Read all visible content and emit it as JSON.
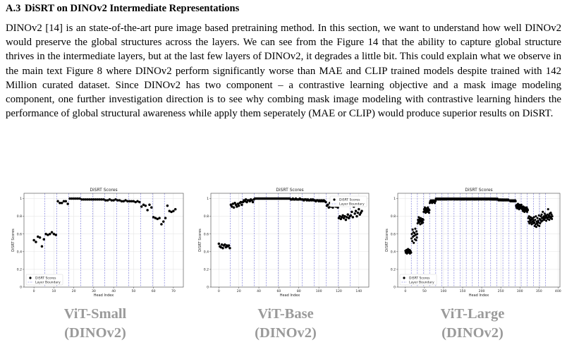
{
  "section": {
    "number": "A.3",
    "title": "DiSRT on DINOv2 Intermediate Representations"
  },
  "paragraph": "DINOv2 [14] is an state-of-the-art pure image based pretraining method. In this section, we want to understand how well DINOv2 would preserve the global structures across the layers. We can see from the Figure 14 that the ability to capture global structure thrives in the intermediate layers, but at the last few layers of DINOv2, it degrades a little bit. This could explain what we observe in the main text Figure 8 where DINOv2 perform significantly worse than MAE and CLIP trained models despite trained with 142 Million curated dataset. Since DINOv2 has two component – a contrastive learning objective and a mask image modeling component, one further investigation direction is to see why combing mask image modeling with contrastive learning hinders the performance of global structural awareness while apply them seperately (MAE or CLIP) would produce superior results on DiSRT.",
  "chart_data": [
    {
      "type": "scatter",
      "title": "DiSRT Scores",
      "xlabel": "Head Index",
      "ylabel": "DiSRT Scores",
      "xlim": [
        -5,
        75
      ],
      "ylim": [
        0.0,
        1.06
      ],
      "xticks": [
        0,
        10,
        20,
        30,
        40,
        50,
        60,
        70
      ],
      "yticks": [
        0.0,
        0.2,
        0.4,
        0.6,
        0.8,
        1.0
      ],
      "legend_position": "lower-left",
      "legend": [
        "DiSRT Scores",
        "Layer Boundary"
      ],
      "grid": true,
      "layer_boundaries": [
        5.5,
        11.5,
        17.5,
        23.5,
        29.5,
        35.5,
        41.5,
        47.5,
        53.5,
        59.5,
        65.5
      ],
      "heads_per_layer": 6,
      "values": [
        0.53,
        0.51,
        0.57,
        0.56,
        0.46,
        0.54,
        0.6,
        0.59,
        0.6,
        0.62,
        0.6,
        0.59,
        0.97,
        0.95,
        0.95,
        0.97,
        0.97,
        0.94,
        1.0,
        1.0,
        1.0,
        1.0,
        1.0,
        1.0,
        0.99,
        0.99,
        0.99,
        0.99,
        0.99,
        0.99,
        0.99,
        0.99,
        0.99,
        0.99,
        0.99,
        0.99,
        0.98,
        0.98,
        0.99,
        0.98,
        0.98,
        0.99,
        0.98,
        0.98,
        0.97,
        0.97,
        0.98,
        0.97,
        0.97,
        0.97,
        0.97,
        0.96,
        0.97,
        0.96,
        0.91,
        0.93,
        0.92,
        0.87,
        0.93,
        0.9,
        0.79,
        0.78,
        0.77,
        0.78,
        0.71,
        0.74,
        0.78,
        0.92,
        0.86,
        0.85,
        0.86,
        0.88
      ],
      "caption": [
        "ViT-Small",
        "(DINOv2)"
      ]
    },
    {
      "type": "scatter",
      "title": "DiSRT Scores",
      "xlabel": "Head Index",
      "ylabel": "DiSRT Scores",
      "xlim": [
        -8,
        150
      ],
      "ylim": [
        0.0,
        1.06
      ],
      "xticks": [
        0,
        20,
        40,
        60,
        80,
        100,
        120,
        140
      ],
      "yticks": [
        0.0,
        0.2,
        0.4,
        0.6,
        0.8,
        1.0
      ],
      "legend_position": "upper-right",
      "legend": [
        "DiSRT Scores",
        "Layer Boundary"
      ],
      "grid": true,
      "layer_boundaries": [
        11.5,
        23.5,
        35.5,
        47.5,
        59.5,
        71.5,
        83.5,
        95.5,
        107.5,
        119.5,
        131.5
      ],
      "heads_per_layer": 12,
      "values": [
        0.49,
        0.46,
        0.45,
        0.48,
        0.44,
        0.47,
        0.48,
        0.45,
        0.47,
        0.46,
        0.47,
        0.44,
        0.93,
        0.91,
        0.94,
        0.9,
        0.95,
        0.93,
        0.91,
        0.94,
        0.92,
        0.95,
        0.96,
        0.93,
        0.96,
        0.98,
        0.97,
        0.99,
        0.96,
        0.98,
        0.98,
        0.97,
        0.99,
        0.98,
        0.96,
        0.99,
        1.0,
        1.0,
        1.0,
        1.0,
        1.0,
        1.0,
        1.0,
        1.0,
        1.0,
        1.0,
        1.0,
        1.0,
        1.0,
        1.0,
        1.0,
        1.0,
        1.0,
        1.0,
        1.0,
        1.0,
        1.0,
        1.0,
        1.0,
        1.0,
        1.0,
        1.0,
        1.0,
        1.0,
        1.0,
        1.0,
        1.0,
        1.0,
        1.0,
        1.0,
        1.0,
        1.0,
        0.99,
        0.99,
        1.0,
        0.99,
        0.99,
        1.0,
        0.99,
        0.99,
        0.99,
        1.0,
        0.99,
        0.99,
        0.99,
        0.98,
        0.99,
        0.99,
        0.98,
        0.99,
        0.98,
        0.98,
        0.99,
        0.98,
        0.99,
        0.98,
        0.98,
        0.97,
        0.98,
        0.98,
        0.97,
        0.98,
        0.97,
        0.98,
        0.97,
        0.98,
        0.97,
        0.96,
        0.92,
        0.93,
        0.9,
        0.95,
        0.91,
        0.93,
        0.9,
        0.94,
        0.92,
        0.91,
        0.93,
        0.9,
        0.78,
        0.8,
        0.77,
        0.79,
        0.81,
        0.78,
        0.8,
        0.76,
        0.79,
        0.82,
        0.78,
        0.8,
        0.81,
        0.85,
        0.79,
        0.91,
        0.83,
        0.86,
        0.8,
        0.84,
        0.88,
        0.82,
        0.84,
        0.86
      ],
      "caption": [
        "ViT-Base",
        "(DINOv2)"
      ]
    },
    {
      "type": "scatter",
      "title": "DiSRT Scores",
      "xlabel": "Head Index",
      "ylabel": "DiSRT Scores",
      "xlim": [
        -20,
        405
      ],
      "ylim": [
        0.0,
        1.06
      ],
      "xticks": [
        0,
        50,
        100,
        150,
        200,
        250,
        300,
        350,
        400
      ],
      "yticks": [
        0.0,
        0.2,
        0.4,
        0.6,
        0.8,
        1.0
      ],
      "legend_position": "lower-left",
      "legend": [
        "DiSRT Scores",
        "Layer Boundary"
      ],
      "grid": true,
      "layer_boundaries": [
        15.5,
        31.5,
        47.5,
        63.5,
        79.5,
        95.5,
        111.5,
        127.5,
        143.5,
        159.5,
        175.5,
        191.5,
        207.5,
        223.5,
        239.5,
        255.5,
        271.5,
        287.5,
        303.5,
        319.5,
        335.5,
        351.5,
        367.5
      ],
      "heads_per_layer": 16,
      "values": [
        0.41,
        0.39,
        0.4,
        0.42,
        0.38,
        0.41,
        0.4,
        0.43,
        0.39,
        0.41,
        0.4,
        0.42,
        0.38,
        0.41,
        0.4,
        0.39,
        0.55,
        0.6,
        0.52,
        0.65,
        0.57,
        0.62,
        0.5,
        0.58,
        0.61,
        0.54,
        0.66,
        0.59,
        0.53,
        0.63,
        0.56,
        0.6,
        0.72,
        0.76,
        0.74,
        0.79,
        0.73,
        0.77,
        0.75,
        0.71,
        0.78,
        0.74,
        0.76,
        0.72,
        0.75,
        0.77,
        0.73,
        0.76,
        0.85,
        0.88,
        0.86,
        0.9,
        0.87,
        0.84,
        0.89,
        0.86,
        0.88,
        0.85,
        0.87,
        0.9,
        0.86,
        0.88,
        0.84,
        0.87,
        0.95,
        0.97,
        0.96,
        0.98,
        0.96,
        0.97,
        0.95,
        0.98,
        0.96,
        0.97,
        0.98,
        0.96,
        0.97,
        0.95,
        0.98,
        0.97,
        1.0,
        0.99,
        1.0,
        0.99,
        1.0,
        1.0,
        0.99,
        1.0,
        0.99,
        1.0,
        1.0,
        0.99,
        1.0,
        0.99,
        1.0,
        1.0,
        1.0,
        0.99,
        1.0,
        1.0,
        0.99,
        1.0,
        1.0,
        0.99,
        1.0,
        1.0,
        0.99,
        1.0,
        1.0,
        0.99,
        1.0,
        1.0,
        1.0,
        1.0,
        0.99,
        1.0,
        1.0,
        1.0,
        0.99,
        1.0,
        1.0,
        1.0,
        0.99,
        1.0,
        1.0,
        1.0,
        1.0,
        0.99,
        1.0,
        1.0,
        0.99,
        1.0,
        1.0,
        1.0,
        0.99,
        1.0,
        1.0,
        0.99,
        1.0,
        1.0,
        1.0,
        0.99,
        1.0,
        1.0,
        1.0,
        0.99,
        1.0,
        0.99,
        1.0,
        1.0,
        0.99,
        1.0,
        1.0,
        0.99,
        1.0,
        1.0,
        0.99,
        1.0,
        1.0,
        1.0,
        0.99,
        1.0,
        0.99,
        1.0,
        1.0,
        0.99,
        1.0,
        1.0,
        0.99,
        1.0,
        1.0,
        0.99,
        1.0,
        1.0,
        1.0,
        0.99,
        1.0,
        1.0,
        1.0,
        0.99,
        1.0,
        0.99,
        1.0,
        1.0,
        0.99,
        1.0,
        1.0,
        0.99,
        1.0,
        1.0,
        1.0,
        0.99,
        1.0,
        1.0,
        0.99,
        1.0,
        1.0,
        1.0,
        0.99,
        1.0,
        1.0,
        0.99,
        1.0,
        1.0,
        1.0,
        0.99,
        1.0,
        1.0,
        1.0,
        0.99,
        1.0,
        1.0,
        0.99,
        1.0,
        1.0,
        0.99,
        1.0,
        1.0,
        1.0,
        0.99,
        1.0,
        1.0,
        0.99,
        1.0,
        1.0,
        0.99,
        1.0,
        0.99,
        1.0,
        0.99,
        0.99,
        1.0,
        0.99,
        0.99,
        1.0,
        0.99,
        0.99,
        1.0,
        0.99,
        0.99,
        0.99,
        1.0,
        0.99,
        0.99,
        0.98,
        0.99,
        0.99,
        0.98,
        0.99,
        0.99,
        0.98,
        0.99,
        0.98,
        0.99,
        0.98,
        0.99,
        0.98,
        0.99,
        0.98,
        0.98,
        0.99,
        0.98,
        0.98,
        0.99,
        0.98,
        0.98,
        0.99,
        0.98,
        0.98,
        0.99,
        0.98,
        0.98,
        0.98,
        0.98,
        0.98,
        0.97,
        0.98,
        0.98,
        0.97,
        0.98,
        0.98,
        0.97,
        0.98,
        0.97,
        0.98,
        0.97,
        0.98,
        0.97,
        0.98,
        0.97,
        0.92,
        0.9,
        0.93,
        0.89,
        0.91,
        0.94,
        0.9,
        0.92,
        0.88,
        0.93,
        0.91,
        0.89,
        0.92,
        0.9,
        0.93,
        0.91,
        0.88,
        0.9,
        0.86,
        0.91,
        0.87,
        0.89,
        0.85,
        0.9,
        0.88,
        0.86,
        0.89,
        0.87,
        0.9,
        0.85,
        0.88,
        0.87,
        0.78,
        0.74,
        0.8,
        0.72,
        0.77,
        0.75,
        0.79,
        0.73,
        0.76,
        0.71,
        0.78,
        0.74,
        0.77,
        0.72,
        0.75,
        0.79,
        0.73,
        0.69,
        0.76,
        0.71,
        0.8,
        0.68,
        0.74,
        0.72,
        0.78,
        0.7,
        0.75,
        0.73,
        0.81,
        0.69,
        0.77,
        0.72,
        0.76,
        0.8,
        0.74,
        0.82,
        0.78,
        0.75,
        0.85,
        0.79,
        0.77,
        0.8,
        0.76,
        0.83,
        0.78,
        0.81,
        0.79,
        0.75,
        0.8,
        0.78,
        0.82,
        0.77,
        0.88,
        0.79,
        0.81,
        0.76,
        0.83,
        0.8,
        0.78,
        0.84,
        0.79,
        0.82,
        0.77,
        0.8
      ],
      "caption": [
        "ViT-Large",
        "(DINOv2)"
      ]
    }
  ]
}
